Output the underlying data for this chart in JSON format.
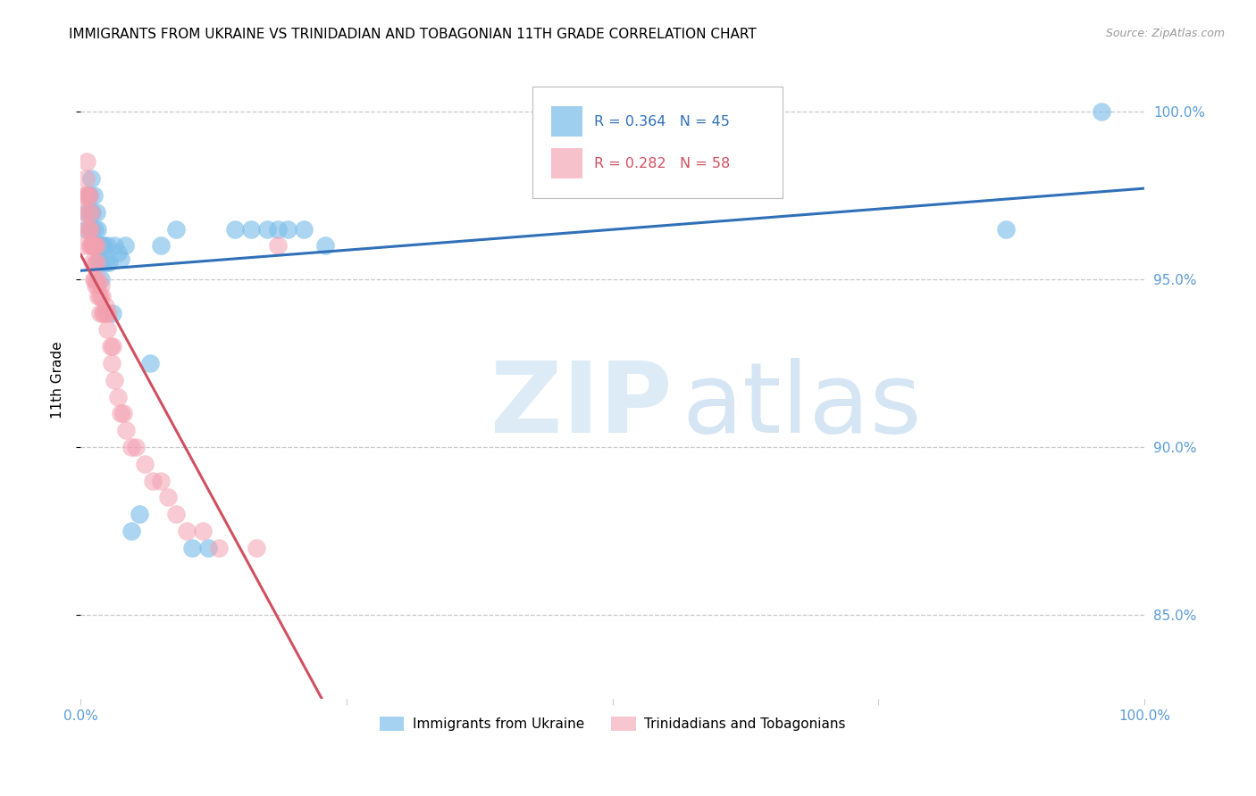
{
  "title": "IMMIGRANTS FROM UKRAINE VS TRINIDADIAN AND TOBAGONIAN 11TH GRADE CORRELATION CHART",
  "source": "Source: ZipAtlas.com",
  "ylabel": "11th Grade",
  "y_tick_labels": [
    "85.0%",
    "90.0%",
    "95.0%",
    "100.0%"
  ],
  "y_tick_values": [
    0.85,
    0.9,
    0.95,
    1.0
  ],
  "x_range": [
    0.0,
    1.0
  ],
  "y_range": [
    0.825,
    1.015
  ],
  "ukraine_color": "#7fbfea",
  "trinidad_color": "#f4a0b0",
  "ukraine_line_color": "#3070b8",
  "trinidad_line_color": "#d05060",
  "ukraine_R": 0.364,
  "ukraine_N": 45,
  "trinidad_R": 0.282,
  "trinidad_N": 58,
  "ukraine_x": [
    0.005,
    0.006,
    0.007,
    0.008,
    0.009,
    0.01,
    0.01,
    0.011,
    0.012,
    0.012,
    0.013,
    0.014,
    0.015,
    0.015,
    0.016,
    0.017,
    0.018,
    0.019,
    0.02,
    0.021,
    0.022,
    0.024,
    0.025,
    0.027,
    0.03,
    0.032,
    0.035,
    0.038,
    0.042,
    0.048,
    0.055,
    0.065,
    0.075,
    0.09,
    0.105,
    0.12,
    0.145,
    0.16,
    0.175,
    0.185,
    0.195,
    0.21,
    0.23,
    0.87,
    0.96
  ],
  "ukraine_y": [
    0.965,
    0.97,
    0.975,
    0.975,
    0.97,
    0.965,
    0.98,
    0.97,
    0.96,
    0.975,
    0.965,
    0.96,
    0.96,
    0.97,
    0.965,
    0.955,
    0.96,
    0.95,
    0.96,
    0.955,
    0.96,
    0.955,
    0.96,
    0.955,
    0.94,
    0.96,
    0.958,
    0.956,
    0.96,
    0.875,
    0.88,
    0.925,
    0.96,
    0.965,
    0.87,
    0.87,
    0.965,
    0.965,
    0.965,
    0.965,
    0.965,
    0.965,
    0.96,
    0.965,
    1.0
  ],
  "trinidad_x": [
    0.002,
    0.003,
    0.004,
    0.005,
    0.005,
    0.006,
    0.006,
    0.007,
    0.007,
    0.008,
    0.008,
    0.009,
    0.009,
    0.01,
    0.01,
    0.011,
    0.011,
    0.012,
    0.012,
    0.013,
    0.013,
    0.014,
    0.014,
    0.015,
    0.015,
    0.016,
    0.016,
    0.017,
    0.018,
    0.018,
    0.019,
    0.02,
    0.021,
    0.022,
    0.023,
    0.024,
    0.025,
    0.026,
    0.028,
    0.029,
    0.03,
    0.032,
    0.035,
    0.038,
    0.04,
    0.043,
    0.048,
    0.052,
    0.06,
    0.068,
    0.075,
    0.082,
    0.09,
    0.1,
    0.115,
    0.13,
    0.165,
    0.185
  ],
  "trinidad_y": [
    0.97,
    0.975,
    0.96,
    0.975,
    0.98,
    0.965,
    0.985,
    0.97,
    0.975,
    0.975,
    0.965,
    0.965,
    0.96,
    0.97,
    0.96,
    0.96,
    0.955,
    0.96,
    0.95,
    0.95,
    0.96,
    0.955,
    0.948,
    0.955,
    0.96,
    0.948,
    0.95,
    0.945,
    0.945,
    0.94,
    0.948,
    0.945,
    0.94,
    0.94,
    0.942,
    0.94,
    0.935,
    0.94,
    0.93,
    0.925,
    0.93,
    0.92,
    0.915,
    0.91,
    0.91,
    0.905,
    0.9,
    0.9,
    0.895,
    0.89,
    0.89,
    0.885,
    0.88,
    0.875,
    0.875,
    0.87,
    0.87,
    0.96
  ]
}
